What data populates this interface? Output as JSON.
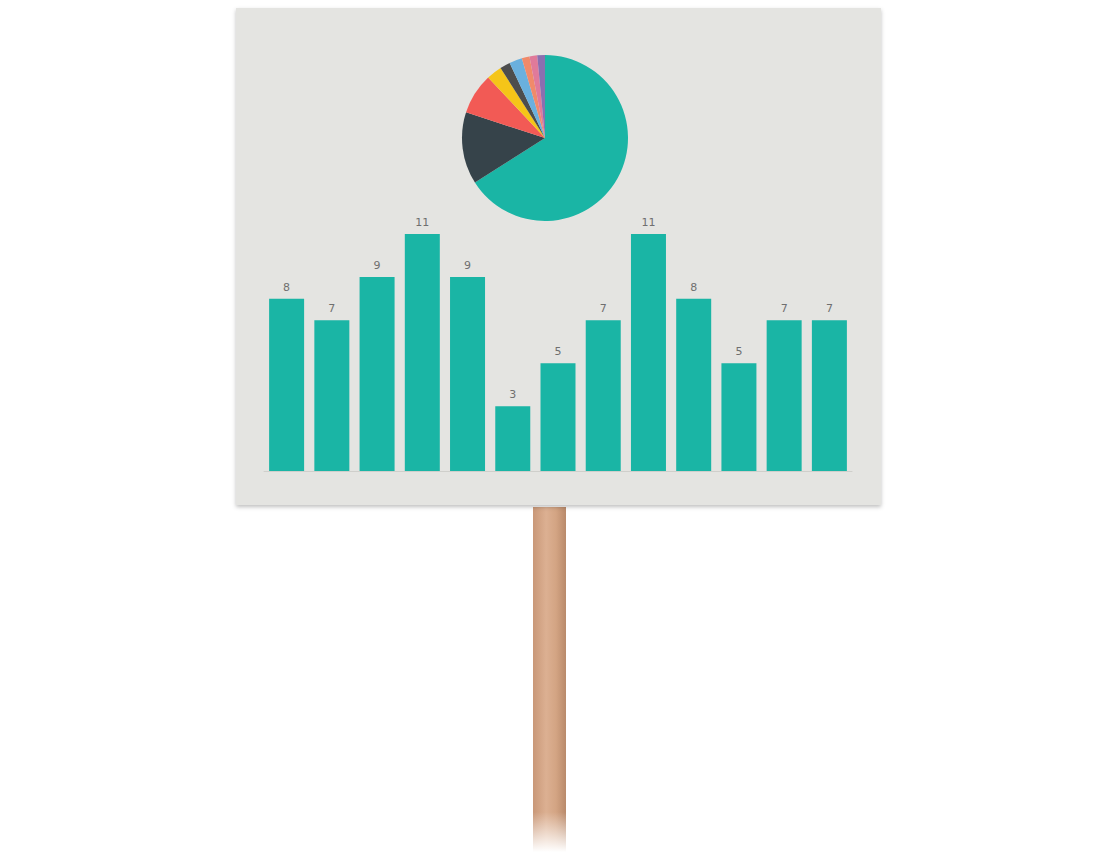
{
  "chart_data": [
    {
      "type": "pie",
      "values": [
        66,
        14,
        8,
        3,
        2,
        2.5,
        1.5,
        1.5,
        1.5
      ],
      "colors": [
        "#1ab5a5",
        "#36434a",
        "#f25a55",
        "#f5c518",
        "#4d4d4d",
        "#6ab0de",
        "#f08a6a",
        "#e07a9a",
        "#8a6fb0"
      ]
    },
    {
      "type": "bar",
      "categories": [
        null,
        null,
        null,
        null,
        null,
        null,
        null,
        null,
        null,
        null,
        null,
        null,
        null
      ],
      "values": [
        8,
        7,
        9,
        11,
        9,
        3,
        5,
        7,
        11,
        8,
        5,
        7,
        7
      ],
      "color": "#1ab5a5",
      "ylim": [
        0,
        11
      ],
      "data_labels": true,
      "tick_labels": false
    }
  ]
}
